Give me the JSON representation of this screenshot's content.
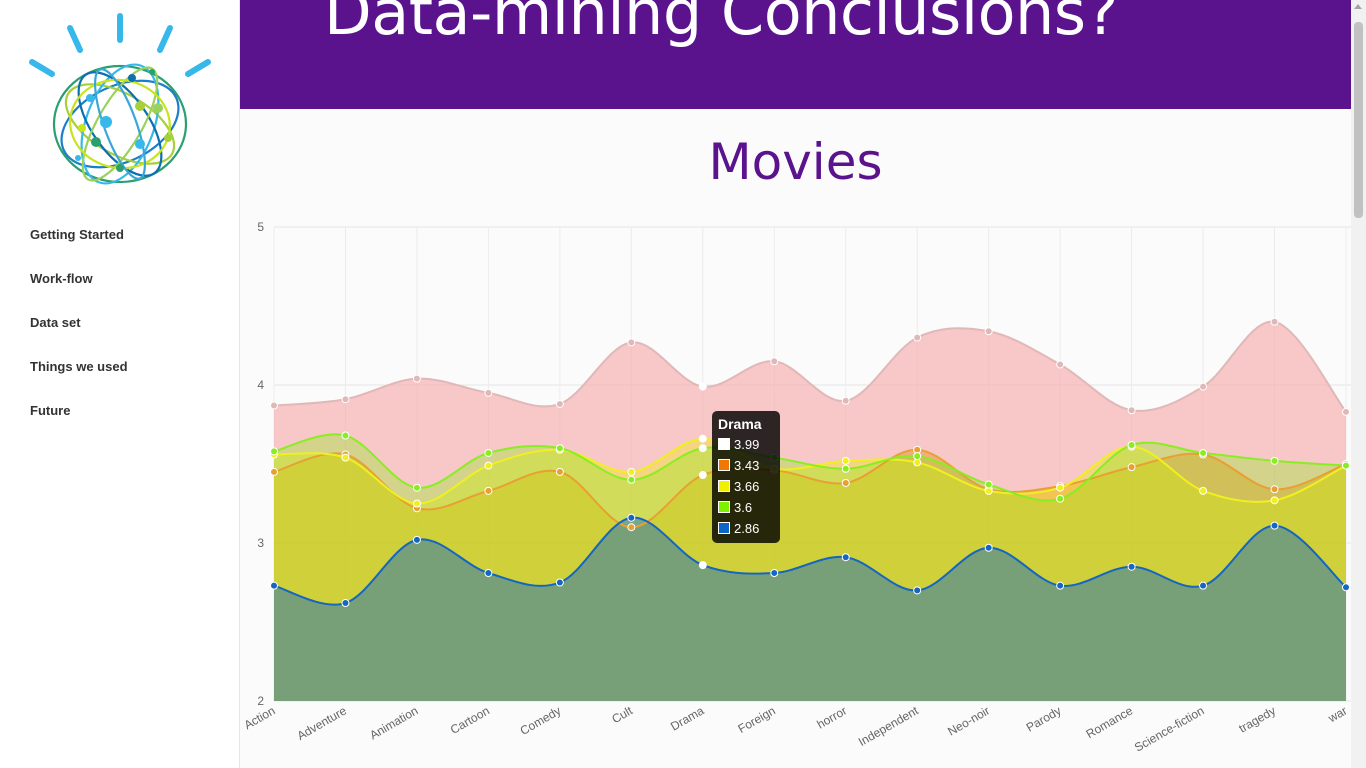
{
  "sidebar": {
    "logo_icon": "ibm-watson-globe-icon",
    "items": [
      {
        "label": "Getting Started"
      },
      {
        "label": "Work-flow"
      },
      {
        "label": "Data set"
      },
      {
        "label": "Things we used"
      },
      {
        "label": "Future"
      }
    ]
  },
  "header": {
    "title": "Data-mining Conclusions?"
  },
  "main": {
    "section_title": "Movies"
  },
  "colors": {
    "header_bg": "#5a138c",
    "title_color": "#5a138c"
  },
  "chart_data": {
    "type": "area",
    "title": "",
    "xlabel": "",
    "ylabel": "",
    "ylim": [
      2,
      5
    ],
    "yticks": [
      "2",
      "3",
      "4",
      "5"
    ],
    "grid": true,
    "categories": [
      "Action",
      "Adventure",
      "Animation",
      "Cartoon",
      "Comedy",
      "Cult",
      "Drama",
      "Foreign",
      "horror",
      "Independent",
      "Neo-noir",
      "Parody",
      "Romance",
      "Science-fiction",
      "tragedy",
      "war"
    ],
    "series": [
      {
        "color": "#f7a5a5",
        "stroke": "#e0b8b8",
        "values": [
          3.87,
          3.91,
          4.04,
          3.95,
          3.88,
          4.27,
          3.99,
          4.15,
          3.9,
          4.3,
          4.34,
          4.13,
          3.84,
          3.99,
          4.4,
          3.83
        ]
      },
      {
        "color": "#f07800",
        "stroke": "#e8a030",
        "values": [
          3.45,
          3.56,
          3.22,
          3.33,
          3.45,
          3.1,
          3.43,
          3.46,
          3.38,
          3.59,
          3.34,
          3.36,
          3.48,
          3.56,
          3.34,
          3.5
        ]
      },
      {
        "color": "#f0f000",
        "stroke": "#f0f020",
        "values": [
          3.56,
          3.54,
          3.25,
          3.49,
          3.59,
          3.45,
          3.66,
          3.47,
          3.52,
          3.51,
          3.33,
          3.35,
          3.61,
          3.33,
          3.27,
          3.49
        ]
      },
      {
        "color": "#7ff000",
        "stroke": "#88ee22",
        "values": [
          3.58,
          3.68,
          3.35,
          3.57,
          3.6,
          3.4,
          3.6,
          3.54,
          3.47,
          3.55,
          3.37,
          3.28,
          3.62,
          3.57,
          3.52,
          3.49
        ]
      },
      {
        "color": "#0b66c8",
        "stroke": "#1466c0",
        "values": [
          2.73,
          2.62,
          3.02,
          2.81,
          2.75,
          3.16,
          2.86,
          2.81,
          2.91,
          2.7,
          2.97,
          2.73,
          2.85,
          2.73,
          3.11,
          2.72
        ]
      }
    ],
    "tooltip": {
      "category": "Drama",
      "rows": [
        {
          "value": "3.99",
          "color": "#ffffff"
        },
        {
          "value": "3.43",
          "color": "#f07800"
        },
        {
          "value": "3.66",
          "color": "#f0f000"
        },
        {
          "value": "3.6",
          "color": "#7ff000"
        },
        {
          "value": "2.86",
          "color": "#0b66c8"
        }
      ]
    }
  }
}
